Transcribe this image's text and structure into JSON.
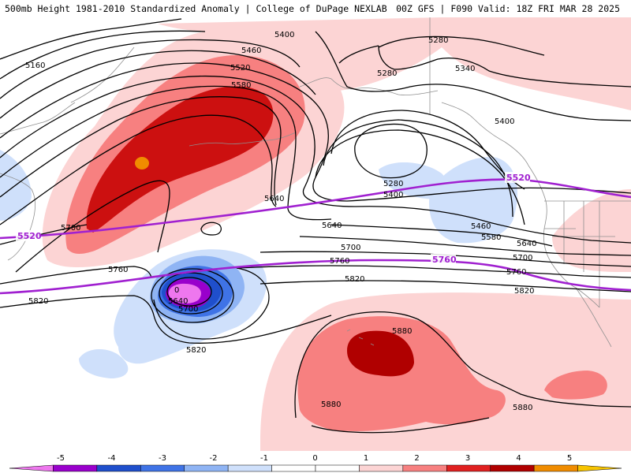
{
  "header": {
    "left_title": "500mb Height 1981-2010 Standardized Anomaly | College of DuPage NEXLAB",
    "right_title": "00Z GFS | F090 Valid: 18Z FRI MAR 28 2025"
  },
  "contour_labels": {
    "c5160": "5160",
    "c5400_top": "5400",
    "c5280_top": "5280",
    "c5460": "5460",
    "c5520": "5520",
    "c5580": "5580",
    "c5280_mid": "5280",
    "c5340": "5340",
    "c5400_right": "5400",
    "c5640_left": "5640",
    "c5280_low": "5280",
    "c5400_low": "5400",
    "c5460_right": "5460",
    "c5580_right": "5580",
    "c5640_right": "5640",
    "c5700_right": "5700",
    "c5760_right": "5760",
    "c5820_right": "5820",
    "c5700_left": "5700",
    "c5640_mid": "5640",
    "c5700_mid": "5700",
    "c5760_mid": "5760",
    "c5760_left": "5760",
    "c5820_mid": "5820",
    "c5820_left": "5820",
    "c5640_low": "5640",
    "c5700_low": "5700",
    "c5820_low": "5820",
    "c5880_a": "5880",
    "c5880_b": "5880",
    "c5880_c": "5880"
  },
  "low_marker": "0",
  "climatology_labels": {
    "clim5520_left": "5520",
    "clim5520_right": "5520",
    "clim5760": "5760"
  },
  "colorbar": {
    "ticks": [
      "-5",
      "-4",
      "-3",
      "-2",
      "-1",
      "0",
      "1",
      "2",
      "3",
      "4",
      "5"
    ],
    "colors": [
      "#ee77ee",
      "#9900cc",
      "#1f4fcc",
      "#3f73e6",
      "#8fb4f4",
      "#cfe0fb",
      "#ffffff",
      "#ffffff",
      "#fcd4d4",
      "#f78080",
      "#e02020",
      "#b00000",
      "#f08c00",
      "#f7c400"
    ]
  },
  "colors": {
    "climatology_line": "#a020d0",
    "contour": "#000000",
    "coast": "#909090"
  }
}
